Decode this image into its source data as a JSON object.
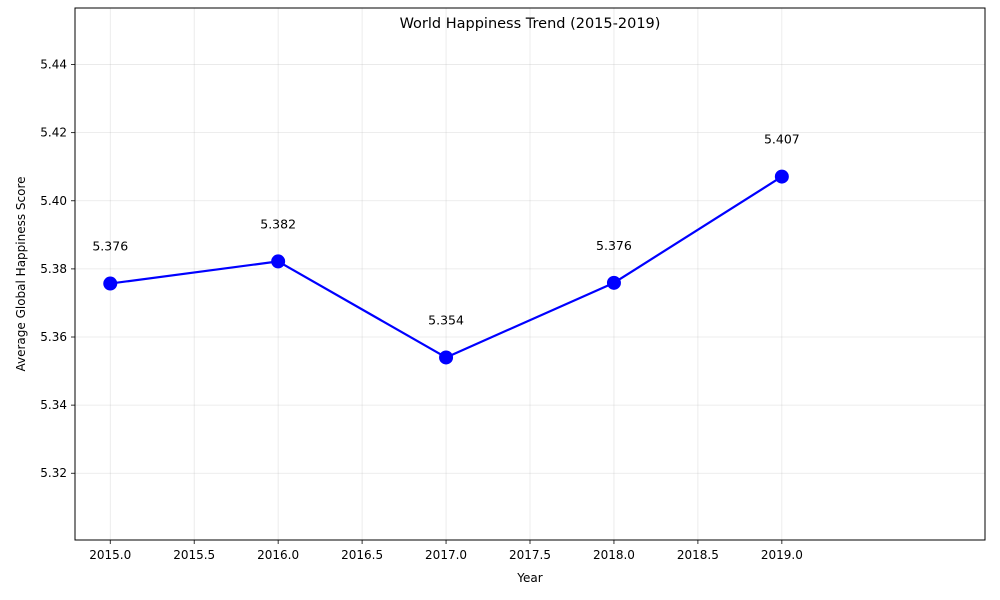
{
  "chart_data": {
    "type": "line",
    "title": "World Happiness Trend (2015-2019)",
    "xlabel": "Year",
    "ylabel": "Average Global Happiness Score",
    "x": [
      2015,
      2016,
      2017,
      2018,
      2019
    ],
    "series": [
      {
        "name": "Average Global Happiness Score",
        "values": [
          5.3757,
          5.3822,
          5.354,
          5.3759,
          5.4071
        ],
        "labels": [
          "5.376",
          "5.382",
          "5.354",
          "5.376",
          "5.407"
        ]
      }
    ],
    "xlim": [
      2014.79,
      2020.21
    ],
    "ylim": [
      5.3004,
      5.4566
    ],
    "x_ticks": [
      2015.0,
      2015.5,
      2016.0,
      2016.5,
      2017.0,
      2017.5,
      2018.0,
      2018.5,
      2019.0
    ],
    "x_tick_labels": [
      "2015.0",
      "2015.5",
      "2016.0",
      "2016.5",
      "2017.0",
      "2017.5",
      "2018.0",
      "2018.5",
      "2019.0"
    ],
    "y_ticks": [
      5.32,
      5.34,
      5.36,
      5.38,
      5.4,
      5.42,
      5.44
    ],
    "y_tick_labels": [
      "5.32",
      "5.34",
      "5.36",
      "5.38",
      "5.40",
      "5.42",
      "5.44"
    ],
    "grid": true,
    "line_color": "#0000ff",
    "marker_color": "#0000ff"
  }
}
